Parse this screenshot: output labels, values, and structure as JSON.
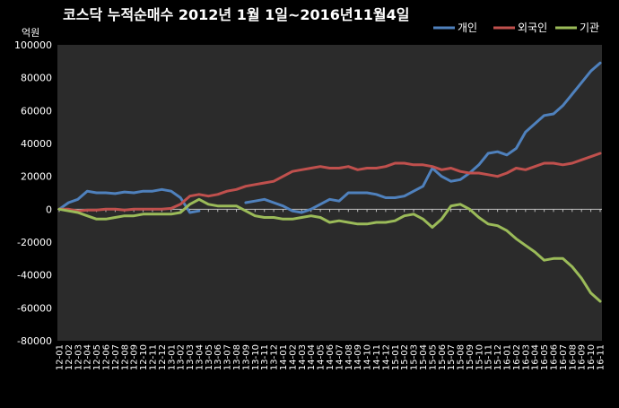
{
  "chart_data": {
    "type": "line",
    "title": "코스닥  누적순매수 2012년 1월 1일~2016년11월4일",
    "ylabel": "억원",
    "ylim": [
      -80000,
      100000
    ],
    "yticks": [
      100000,
      80000,
      60000,
      40000,
      20000,
      0,
      -20000,
      -40000,
      -60000,
      -80000
    ],
    "grid": false,
    "legend_position": "top-right",
    "background": "#000000",
    "plot_background": "#2b2b2b",
    "categories": [
      "12-01",
      "12-02",
      "12-03",
      "12-04",
      "12-05",
      "12-06",
      "12-07",
      "12-08",
      "12-09",
      "12-10",
      "12-11",
      "12-12",
      "13-01",
      "13-02",
      "13-03",
      "13-04",
      "13-05",
      "13-06",
      "13-07",
      "13-08",
      "13-09",
      "13-10",
      "13-11",
      "13-12",
      "14-01",
      "14-02",
      "14-03",
      "14-04",
      "14-05",
      "14-06",
      "14-07",
      "14-08",
      "14-09",
      "14-10",
      "14-11",
      "14-12",
      "15-01",
      "15-02",
      "15-03",
      "15-04",
      "15-05",
      "15-06",
      "15-07",
      "15-08",
      "15-09",
      "15-10",
      "15-11",
      "15-12",
      "16-01",
      "16-02",
      "16-03",
      "16-04",
      "16-05",
      "16-06",
      "16-07",
      "16-08",
      "16-09",
      "16-10",
      "16-11"
    ],
    "series": [
      {
        "name": "개인",
        "color": "#4f81bd",
        "values": [
          0,
          4000,
          6000,
          11000,
          10000,
          10000,
          9500,
          10500,
          10000,
          11000,
          11000,
          12000,
          11000,
          7000,
          -2000,
          -1000,
          null,
          null,
          null,
          null,
          4000,
          5000,
          6000,
          4000,
          2000,
          -1000,
          -2000,
          0,
          3000,
          6000,
          5000,
          10000,
          10000,
          10000,
          9000,
          7000,
          7000,
          8000,
          11000,
          14000,
          25000,
          20000,
          17000,
          18000,
          22000,
          27000,
          34000,
          35000,
          33000,
          37000,
          47000,
          52000,
          57000,
          58000,
          63000,
          70000,
          77000,
          84000,
          89000
        ]
      },
      {
        "name": "외국인",
        "color": "#c0504d",
        "values": [
          0,
          0,
          -1000,
          -500,
          -500,
          0,
          0,
          -500,
          0,
          0,
          0,
          0,
          500,
          3000,
          8000,
          9000,
          8000,
          9000,
          11000,
          12000,
          14000,
          15000,
          16000,
          17000,
          20000,
          23000,
          24000,
          25000,
          26000,
          25000,
          25000,
          26000,
          24000,
          25000,
          25000,
          26000,
          28000,
          28000,
          27000,
          27000,
          26000,
          24000,
          25000,
          23000,
          22000,
          22000,
          21000,
          20000,
          22000,
          25000,
          24000,
          26000,
          28000,
          28000,
          27000,
          28000,
          30000,
          32000,
          34000
        ]
      },
      {
        "name": "기관",
        "color": "#9bbb59",
        "values": [
          0,
          -1000,
          -2000,
          -4000,
          -6000,
          -6000,
          -5000,
          -4000,
          -4000,
          -3000,
          -3000,
          -3000,
          -3000,
          -2000,
          3000,
          6000,
          3000,
          2000,
          2000,
          2000,
          -1000,
          -4000,
          -5000,
          -5000,
          -6000,
          -6000,
          -5000,
          -4000,
          -5000,
          -8000,
          -7000,
          -8000,
          -9000,
          -9000,
          -8000,
          -8000,
          -7000,
          -4000,
          -3000,
          -6000,
          -11000,
          -6000,
          2000,
          3000,
          0,
          -5000,
          -9000,
          -10000,
          -13000,
          -18000,
          -22000,
          -26000,
          -31000,
          -30000,
          -30000,
          -35000,
          -42000,
          -51000,
          -56000
        ]
      }
    ]
  }
}
